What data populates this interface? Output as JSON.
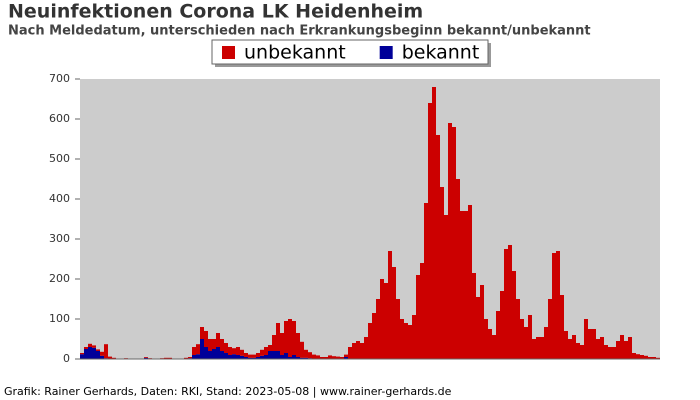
{
  "chart_data": {
    "type": "stacked_bar",
    "title": "Neuinfektionen Corona LK Heidenheim",
    "subtitle": "Nach Meldedatum, unterschieden nach Erkrankungsbeginn bekannt/unbekannt",
    "footer": "Grafik: Rainer Gerhards, Daten: RKI, Stand: 2023-05-08 | www.rainer-gerhards.de",
    "categories": [
      null,
      null,
      null,
      null,
      null,
      null,
      null,
      null,
      null,
      null,
      null,
      null,
      null,
      null,
      null,
      null,
      null,
      null,
      null,
      null,
      null,
      null,
      null,
      null,
      null,
      null,
      null,
      null,
      null,
      null,
      null,
      null,
      null,
      null,
      null,
      null,
      null,
      null,
      null,
      null,
      null,
      null,
      null,
      null,
      null,
      null,
      null,
      null,
      null,
      null,
      null,
      null,
      null,
      null,
      null,
      null,
      null,
      null,
      null,
      null,
      null,
      null,
      null,
      null,
      null,
      null,
      null,
      null,
      null,
      null,
      null,
      null,
      null,
      null,
      null,
      null,
      null,
      null,
      null,
      null,
      null,
      null,
      null,
      null,
      null,
      null,
      null,
      null,
      null,
      null,
      null,
      null,
      null,
      null,
      null,
      null,
      null,
      null,
      null,
      null,
      null,
      null,
      null,
      null,
      null,
      null,
      null,
      null,
      null,
      null,
      null,
      null,
      null,
      null,
      null,
      null,
      null,
      null,
      null,
      null,
      null,
      null,
      null,
      null,
      null,
      null,
      null,
      null,
      null,
      null,
      null,
      null,
      null,
      null,
      null,
      null,
      null,
      null,
      null,
      null,
      null,
      null,
      null,
      null,
      null
    ],
    "series": [
      {
        "name": "unbekannt",
        "color": "#cc0000",
        "values": [
          3,
          5,
          8,
          6,
          4,
          10,
          35,
          5,
          3,
          1,
          0,
          2,
          1,
          0,
          0,
          1,
          2,
          1,
          0,
          0,
          2,
          3,
          2,
          1,
          0,
          1,
          2,
          3,
          20,
          25,
          30,
          40,
          30,
          25,
          35,
          30,
          25,
          20,
          15,
          20,
          15,
          10,
          8,
          8,
          10,
          15,
          20,
          15,
          40,
          70,
          55,
          80,
          95,
          85,
          60,
          40,
          20,
          15,
          10,
          8,
          5,
          5,
          8,
          6,
          5,
          4,
          6,
          30,
          40,
          45,
          40,
          55,
          90,
          115,
          150,
          200,
          190,
          270,
          230,
          150,
          100,
          90,
          85,
          110,
          210,
          240,
          390,
          640,
          680,
          560,
          430,
          360,
          590,
          580,
          450,
          370,
          370,
          385,
          215,
          155,
          185,
          100,
          75,
          60,
          120,
          170,
          275,
          285,
          220,
          150,
          100,
          80,
          110,
          50,
          55,
          55,
          80,
          150,
          265,
          270,
          160,
          70,
          50,
          60,
          40,
          35,
          100,
          75,
          75,
          50,
          55,
          35,
          30,
          30,
          45,
          60,
          45,
          55,
          15,
          12,
          10,
          8,
          5,
          5,
          3
        ]
      },
      {
        "name": "bekannt",
        "color": "#000099",
        "values": [
          12,
          25,
          30,
          28,
          20,
          8,
          2,
          1,
          0,
          0,
          0,
          0,
          0,
          0,
          0,
          0,
          3,
          1,
          0,
          0,
          0,
          0,
          1,
          0,
          0,
          0,
          1,
          2,
          10,
          12,
          50,
          30,
          20,
          25,
          30,
          20,
          15,
          10,
          12,
          10,
          8,
          5,
          3,
          3,
          5,
          8,
          10,
          20,
          20,
          20,
          10,
          15,
          5,
          10,
          5,
          3,
          3,
          2,
          1,
          1,
          0,
          0,
          1,
          1,
          1,
          1,
          5,
          0,
          0,
          0,
          0,
          0,
          0,
          0,
          0,
          0,
          0,
          0,
          0,
          0,
          0,
          0,
          0,
          0,
          0,
          0,
          0,
          0,
          0,
          0,
          0,
          0,
          0,
          0,
          0,
          0,
          0,
          0,
          0,
          0,
          0,
          0,
          0,
          0,
          0,
          0,
          0,
          0,
          0,
          0,
          0,
          0,
          0,
          0,
          0,
          0,
          0,
          0,
          0,
          0,
          0,
          0,
          0,
          0,
          0,
          0,
          0,
          0,
          0,
          0,
          0,
          0,
          0,
          0,
          0,
          0,
          0,
          0,
          0,
          0,
          0,
          0,
          0,
          0,
          0
        ]
      }
    ],
    "stack_order": "reverse",
    "ylim": [
      0,
      700
    ],
    "yticks": [
      0,
      100,
      200,
      300,
      400,
      500,
      600,
      700
    ],
    "background": "#cccccc",
    "legend": "top"
  }
}
